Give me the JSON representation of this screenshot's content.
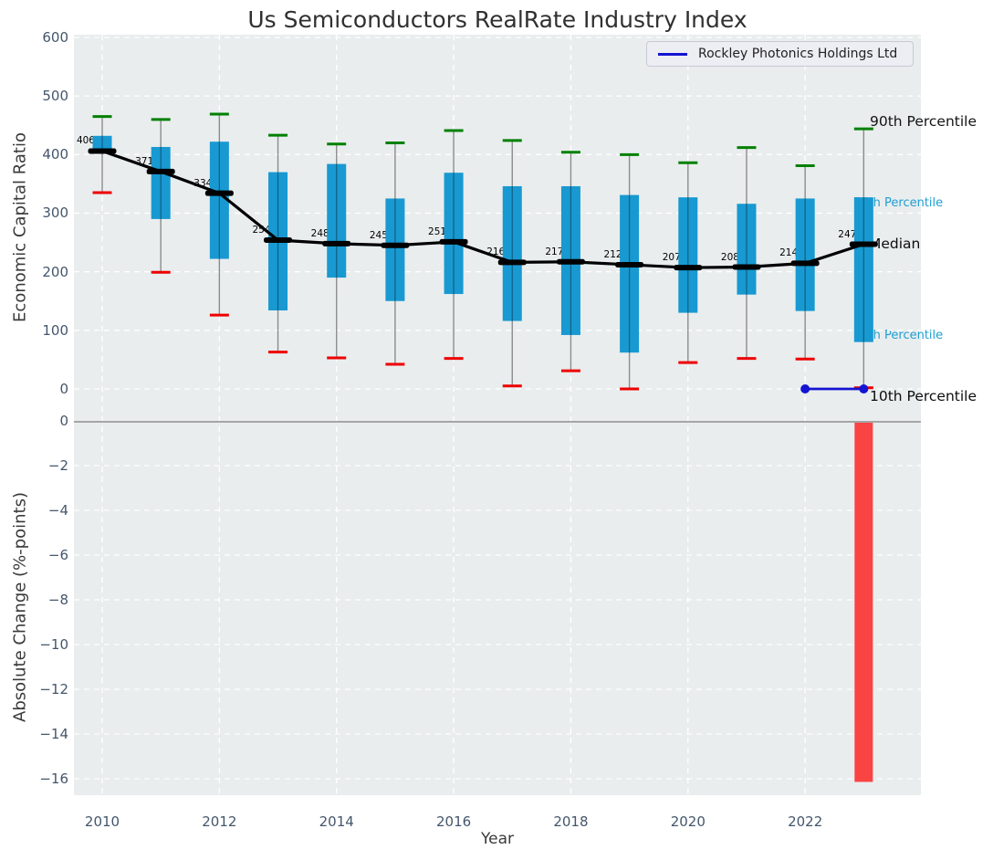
{
  "figure": {
    "title": "Us Semiconductors RealRate Industry Index",
    "xlabel": "Year",
    "legend": {
      "label": "Rockley Photonics Holdings Ltd"
    },
    "annotations": {
      "p90": {
        "label": "90th Percentile"
      },
      "p75": {
        "label": "75th Percentile"
      },
      "median": {
        "label": "Median"
      },
      "p25": {
        "label": "25th Percentile"
      },
      "p10": {
        "label": "10th Percentile"
      }
    }
  },
  "colors": {
    "plot_bg": "#e9edee",
    "grid": "#ffffff",
    "box_fill": "#1899d1",
    "whisker": "#8c8c8c",
    "cap_high": "#008000",
    "cap_low": "#ee0000",
    "median_line": "#000000",
    "company_line": "#1414d2",
    "change_bar": "#fa4343",
    "percentile_label_blue": "#219ed2",
    "tick_label": "#44566c",
    "boundary_line": "#a6a6a6"
  },
  "chart_data": [
    {
      "type": "box-whisker-timeseries",
      "title": "Us Semiconductors RealRate Industry Index",
      "xlabel": "Year",
      "ylabel": "Economic Capital Ratio",
      "ylim": [
        0,
        600
      ],
      "grid": true,
      "legend_position": "upper right",
      "y_ticks": [
        {
          "label": "600",
          "value": 600
        },
        {
          "label": "500",
          "value": 500
        },
        {
          "label": "400",
          "value": 400
        },
        {
          "label": "300",
          "value": 300
        },
        {
          "label": "200",
          "value": 200
        },
        {
          "label": "100",
          "value": 100
        },
        {
          "label": "0",
          "value": 0
        }
      ],
      "x_ticks": [
        {
          "label": "2010",
          "year": 2010
        },
        {
          "label": "2012",
          "year": 2012
        },
        {
          "label": "2014",
          "year": 2014
        },
        {
          "label": "2016",
          "year": 2016
        },
        {
          "label": "2018",
          "year": 2018
        },
        {
          "label": "2020",
          "year": 2020
        },
        {
          "label": "2022",
          "year": 2022
        }
      ],
      "years": [
        2010,
        2011,
        2012,
        2013,
        2014,
        2015,
        2016,
        2017,
        2018,
        2019,
        2020,
        2021,
        2022,
        2023
      ],
      "median": [
        406,
        371,
        334,
        254,
        248,
        245,
        251,
        216,
        217,
        212,
        207,
        208,
        214.5,
        247
      ],
      "median_labels": [
        "406.0",
        "371.0",
        "334.0",
        "254.0",
        "248.0",
        "245.0",
        "251.0",
        "216.0",
        "217.0",
        "212.0",
        "207.0",
        "208.0",
        "214.5",
        "247.0"
      ],
      "p75": [
        432,
        413,
        422,
        370,
        384,
        325,
        369,
        346,
        346,
        331,
        327,
        316,
        325,
        327
      ],
      "p25": [
        404,
        290,
        222,
        134,
        190,
        150,
        162,
        116,
        92,
        62,
        130,
        161,
        133,
        80
      ],
      "p90": [
        465,
        460,
        469,
        433,
        418,
        420,
        441,
        424,
        404,
        400,
        386,
        412,
        381,
        444
      ],
      "p10": [
        335,
        199,
        126,
        63,
        53,
        42,
        52,
        5,
        31,
        0,
        45,
        52,
        51,
        2
      ],
      "company_series": {
        "name": "Rockley Photonics Holdings Ltd",
        "x": [
          2022,
          2023
        ],
        "y": [
          0,
          0
        ]
      }
    },
    {
      "type": "bar",
      "ylabel": "Absolute Change (%-points)",
      "ylim": [
        -16.5,
        0
      ],
      "grid": true,
      "y_ticks": [
        {
          "label": "0",
          "value": 0
        },
        {
          "label": "−2",
          "value": -2
        },
        {
          "label": "−4",
          "value": -4
        },
        {
          "label": "−6",
          "value": -6
        },
        {
          "label": "−8",
          "value": -8
        },
        {
          "label": "−10",
          "value": -10
        },
        {
          "label": "−12",
          "value": -12
        },
        {
          "label": "−14",
          "value": -14
        },
        {
          "label": "−16",
          "value": -16
        }
      ],
      "bars": [
        {
          "year": 2023,
          "value": -16.1
        }
      ]
    }
  ]
}
